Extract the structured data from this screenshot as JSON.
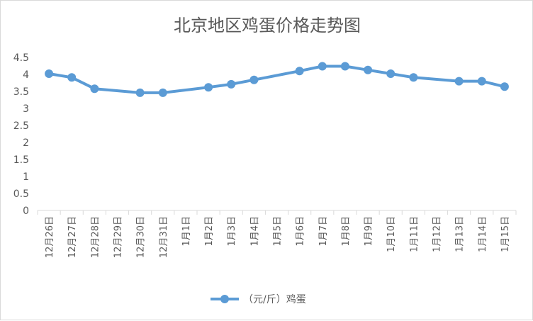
{
  "chart_data": {
    "type": "line",
    "title": "北京地区鸡蛋价格走势图",
    "categories": [
      "12月26日",
      "12月27日",
      "12月28日",
      "12月29日",
      "12月30日",
      "12月31日",
      "1月1日",
      "1月2日",
      "1月3日",
      "1月4日",
      "1月5日",
      "1月6日",
      "1月7日",
      "1月8日",
      "1月9日",
      "1月10日",
      "1月11日",
      "1月12日",
      "1月13日",
      "1月14日",
      "1月15日"
    ],
    "series": [
      {
        "name": "（元/斤）鸡蛋",
        "values": [
          4.02,
          3.91,
          3.58,
          null,
          3.46,
          3.46,
          null,
          3.62,
          3.71,
          3.84,
          null,
          4.1,
          4.24,
          4.24,
          4.13,
          4.02,
          3.91,
          null,
          3.8,
          3.8,
          3.64
        ],
        "color": "#5b9bd5"
      }
    ],
    "yticks": [
      "0",
      "0.5",
      "1",
      "1.5",
      "2",
      "2.5",
      "3",
      "3.5",
      "4",
      "4.5"
    ],
    "ylim": [
      0,
      4.5
    ],
    "grid": false,
    "legend_position": "bottom"
  }
}
